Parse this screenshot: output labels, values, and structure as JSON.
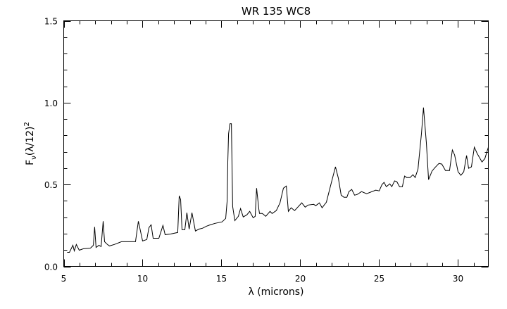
{
  "chart_data": {
    "type": "line",
    "title": "WR 135 WC8",
    "xlabel": "λ (microns)",
    "ylabel": {
      "main": "F",
      "sub": "ν",
      "rest": "(λ/12)",
      "sup": "2"
    },
    "xlim": [
      5,
      31.92
    ],
    "ylim": [
      0,
      1.5
    ],
    "xticks": [
      5,
      10,
      15,
      20,
      25,
      30
    ],
    "xtick_labels": [
      "5",
      "10",
      "15",
      "20",
      "25",
      "30"
    ],
    "yticks": [
      0,
      0.5,
      1.0,
      1.5
    ],
    "ytick_labels": [
      "0.0",
      "0.5",
      "1.0",
      "1.5"
    ],
    "x_minor_step": 1,
    "y_minor_step": 0.1,
    "grid": false,
    "line_color": "#000000",
    "series": [
      {
        "points": [
          [
            5.22,
            0.086
          ],
          [
            5.36,
            0.086
          ],
          [
            5.58,
            0.129
          ],
          [
            5.67,
            0.095
          ],
          [
            5.8,
            0.134
          ],
          [
            5.98,
            0.099
          ],
          [
            6.25,
            0.108
          ],
          [
            6.7,
            0.112
          ],
          [
            6.88,
            0.129
          ],
          [
            6.96,
            0.241
          ],
          [
            7.05,
            0.116
          ],
          [
            7.23,
            0.129
          ],
          [
            7.37,
            0.121
          ],
          [
            7.5,
            0.276
          ],
          [
            7.59,
            0.151
          ],
          [
            7.77,
            0.134
          ],
          [
            7.9,
            0.125
          ],
          [
            8.21,
            0.134
          ],
          [
            8.66,
            0.151
          ],
          [
            8.93,
            0.151
          ],
          [
            9.38,
            0.151
          ],
          [
            9.55,
            0.151
          ],
          [
            9.73,
            0.276
          ],
          [
            10.0,
            0.155
          ],
          [
            10.27,
            0.164
          ],
          [
            10.4,
            0.237
          ],
          [
            10.54,
            0.254
          ],
          [
            10.67,
            0.172
          ],
          [
            11.03,
            0.172
          ],
          [
            11.29,
            0.25
          ],
          [
            11.43,
            0.194
          ],
          [
            11.79,
            0.198
          ],
          [
            12.23,
            0.207
          ],
          [
            12.32,
            0.431
          ],
          [
            12.41,
            0.409
          ],
          [
            12.5,
            0.224
          ],
          [
            12.68,
            0.224
          ],
          [
            12.81,
            0.328
          ],
          [
            12.95,
            0.228
          ],
          [
            13.13,
            0.328
          ],
          [
            13.35,
            0.216
          ],
          [
            13.57,
            0.228
          ],
          [
            13.79,
            0.233
          ],
          [
            14.06,
            0.246
          ],
          [
            14.29,
            0.254
          ],
          [
            14.6,
            0.263
          ],
          [
            15.04,
            0.272
          ],
          [
            15.27,
            0.293
          ],
          [
            15.36,
            0.401
          ],
          [
            15.4,
            0.638
          ],
          [
            15.45,
            0.81
          ],
          [
            15.54,
            0.871
          ],
          [
            15.63,
            0.871
          ],
          [
            15.71,
            0.366
          ],
          [
            15.85,
            0.28
          ],
          [
            16.07,
            0.306
          ],
          [
            16.21,
            0.353
          ],
          [
            16.38,
            0.302
          ],
          [
            16.61,
            0.315
          ],
          [
            16.79,
            0.336
          ],
          [
            17.01,
            0.297
          ],
          [
            17.14,
            0.306
          ],
          [
            17.23,
            0.478
          ],
          [
            17.37,
            0.349
          ],
          [
            17.41,
            0.323
          ],
          [
            17.59,
            0.323
          ],
          [
            17.81,
            0.306
          ],
          [
            18.08,
            0.336
          ],
          [
            18.21,
            0.323
          ],
          [
            18.48,
            0.341
          ],
          [
            18.71,
            0.388
          ],
          [
            18.93,
            0.478
          ],
          [
            19.11,
            0.491
          ],
          [
            19.24,
            0.336
          ],
          [
            19.42,
            0.358
          ],
          [
            19.64,
            0.341
          ],
          [
            20.09,
            0.388
          ],
          [
            20.31,
            0.362
          ],
          [
            20.49,
            0.375
          ],
          [
            20.85,
            0.379
          ],
          [
            20.98,
            0.371
          ],
          [
            21.21,
            0.388
          ],
          [
            21.38,
            0.358
          ],
          [
            21.65,
            0.392
          ],
          [
            21.96,
            0.509
          ],
          [
            22.23,
            0.608
          ],
          [
            22.41,
            0.539
          ],
          [
            22.59,
            0.435
          ],
          [
            22.77,
            0.422
          ],
          [
            22.95,
            0.422
          ],
          [
            23.08,
            0.457
          ],
          [
            23.26,
            0.47
          ],
          [
            23.44,
            0.435
          ],
          [
            23.62,
            0.44
          ],
          [
            23.88,
            0.457
          ],
          [
            24.2,
            0.444
          ],
          [
            24.78,
            0.466
          ],
          [
            25.0,
            0.461
          ],
          [
            25.18,
            0.5
          ],
          [
            25.31,
            0.513
          ],
          [
            25.45,
            0.487
          ],
          [
            25.67,
            0.504
          ],
          [
            25.8,
            0.487
          ],
          [
            25.98,
            0.522
          ],
          [
            26.12,
            0.517
          ],
          [
            26.29,
            0.487
          ],
          [
            26.47,
            0.487
          ],
          [
            26.61,
            0.552
          ],
          [
            26.74,
            0.543
          ],
          [
            26.96,
            0.543
          ],
          [
            27.14,
            0.56
          ],
          [
            27.28,
            0.543
          ],
          [
            27.46,
            0.595
          ],
          [
            27.68,
            0.81
          ],
          [
            27.81,
            0.97
          ],
          [
            27.99,
            0.754
          ],
          [
            28.13,
            0.53
          ],
          [
            28.35,
            0.582
          ],
          [
            28.53,
            0.603
          ],
          [
            28.79,
            0.629
          ],
          [
            28.97,
            0.625
          ],
          [
            29.2,
            0.586
          ],
          [
            29.46,
            0.586
          ],
          [
            29.64,
            0.711
          ],
          [
            29.78,
            0.681
          ],
          [
            30.0,
            0.578
          ],
          [
            30.18,
            0.556
          ],
          [
            30.36,
            0.578
          ],
          [
            30.54,
            0.677
          ],
          [
            30.67,
            0.599
          ],
          [
            30.85,
            0.608
          ],
          [
            31.03,
            0.728
          ],
          [
            31.21,
            0.69
          ],
          [
            31.52,
            0.638
          ],
          [
            31.7,
            0.659
          ],
          [
            31.92,
            0.728
          ]
        ]
      }
    ]
  }
}
